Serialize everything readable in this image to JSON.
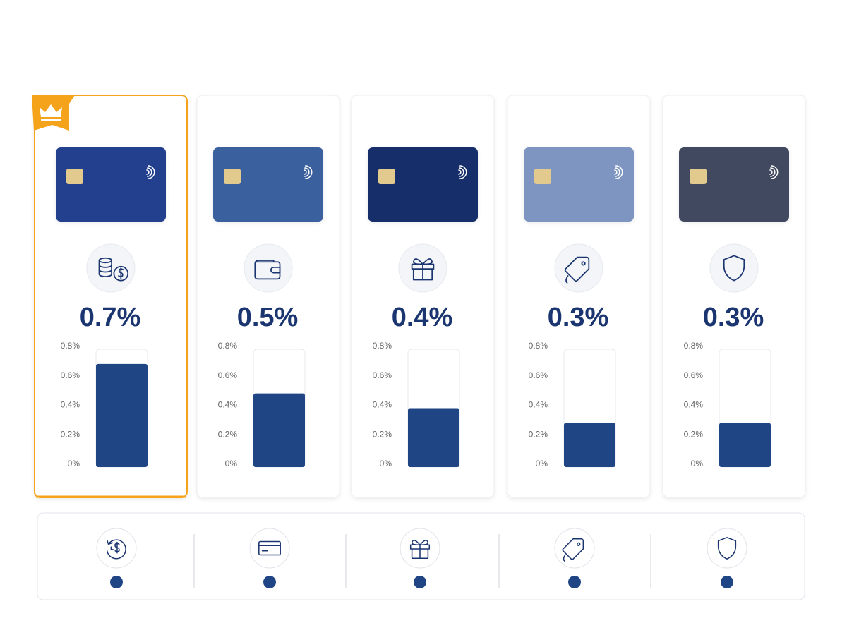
{
  "axis": {
    "lim": [
      0,
      0.8
    ],
    "ticks": [
      {
        "value": 0,
        "label": "0%"
      },
      {
        "value": 0.2,
        "label": "0.2%"
      },
      {
        "value": 0.4,
        "label": "0.4%"
      },
      {
        "value": 0.6,
        "label": "0.6%"
      },
      {
        "value": 0.8,
        "label": "0.8%"
      }
    ]
  },
  "bar_color": "#1f4585",
  "cards": [
    {
      "value": 0.7,
      "value_label": "0.7%",
      "card_color": "#23408e",
      "icon": "coins",
      "featured": true
    },
    {
      "value": 0.5,
      "value_label": "0.5%",
      "card_color": "#3a619e",
      "icon": "wallet",
      "featured": false
    },
    {
      "value": 0.4,
      "value_label": "0.4%",
      "card_color": "#142f6b",
      "icon": "gift",
      "featured": false
    },
    {
      "value": 0.3,
      "value_label": "0.3%",
      "card_color": "#7d95c0",
      "icon": "tag",
      "featured": false
    },
    {
      "value": 0.3,
      "value_label": "0.3%",
      "card_color": "#414a5e",
      "icon": "shield",
      "featured": false
    }
  ],
  "footer_icons": [
    "refresh-dollar",
    "card",
    "gift",
    "tag",
    "shield"
  ]
}
